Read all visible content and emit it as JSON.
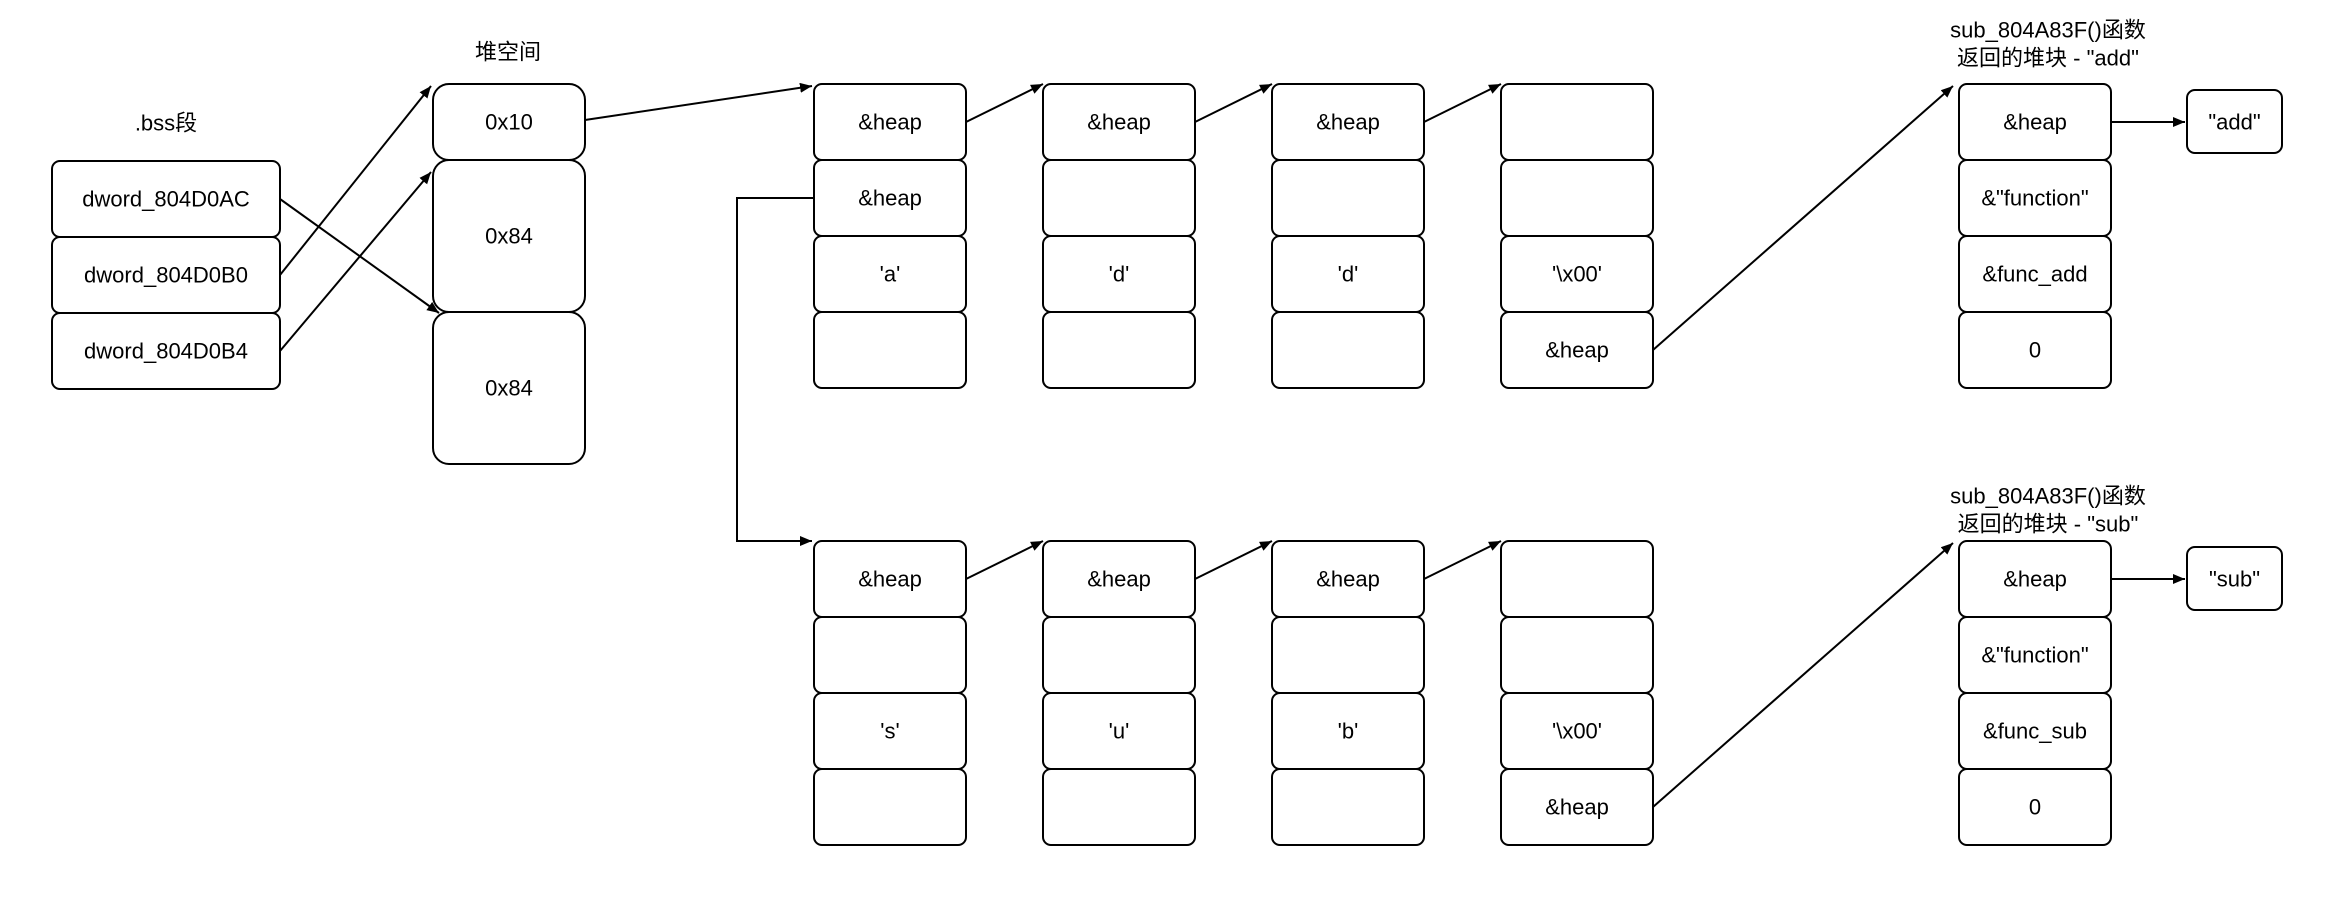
{
  "style": {
    "stroke": "#000000",
    "fill": "#ffffff",
    "text": "#000000"
  },
  "labels": {
    "bss": ".bss段",
    "heap": "堆空间",
    "add_ret_1": "sub_804A83F()函数",
    "add_ret_2": "返回的堆块 - \"add\"",
    "sub_ret_1": "sub_804A83F()函数",
    "sub_ret_2": "返回的堆块 - \"sub\""
  },
  "bss": [
    "dword_804D0AC",
    "dword_804D0B0",
    "dword_804D0B4"
  ],
  "heap_chunks": [
    "0x10",
    "0x84",
    "0x84"
  ],
  "add_row": {
    "nodes": [
      [
        "&heap",
        "&heap",
        "'a'",
        ""
      ],
      [
        "&heap",
        "",
        "'d'",
        ""
      ],
      [
        "&heap",
        "",
        "'d'",
        ""
      ],
      [
        "",
        "",
        "'\\x00'",
        "&heap"
      ]
    ],
    "func": [
      "&heap",
      "&\"function\"",
      "&func_add",
      "0"
    ],
    "name": "\"add\""
  },
  "sub_row": {
    "nodes": [
      [
        "&heap",
        "",
        "'s'",
        ""
      ],
      [
        "&heap",
        "",
        "'u'",
        ""
      ],
      [
        "&heap",
        "",
        "'b'",
        ""
      ],
      [
        "",
        "",
        "'\\x00'",
        "&heap"
      ]
    ],
    "func": [
      "&heap",
      "&\"function\"",
      "&func_sub",
      "0"
    ],
    "name": "\"sub\""
  }
}
